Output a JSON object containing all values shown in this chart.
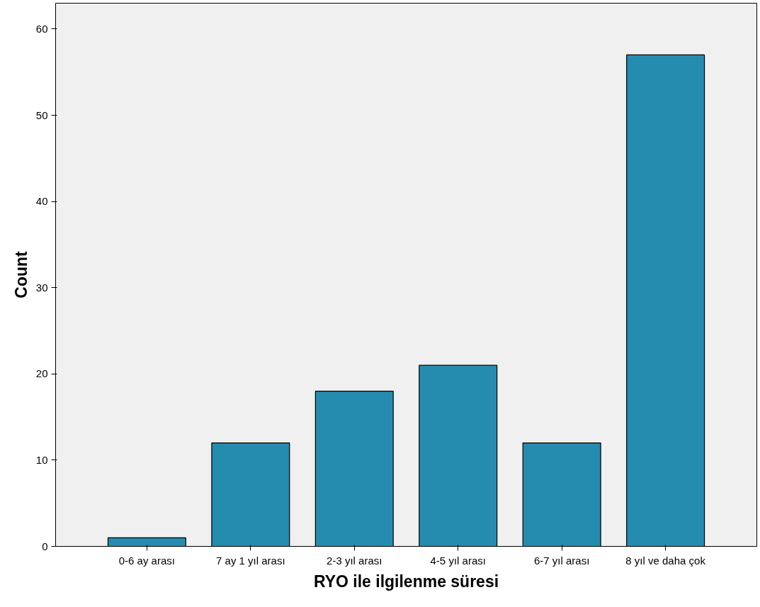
{
  "chart_data": {
    "type": "bar",
    "xlabel": "RYO ile ilgilenme süresi",
    "ylabel": "Count",
    "categories": [
      "0-6 ay arası",
      "7 ay 1 yıl arası",
      "2-3 yıl arası",
      "4-5 yıl arası",
      "6-7 yıl arası",
      "8 yıl ve daha çok"
    ],
    "values": [
      1,
      12,
      18,
      21,
      12,
      57
    ],
    "color": "#268caf",
    "ylim": [
      0,
      63
    ],
    "yticks": [
      0,
      10,
      20,
      30,
      40,
      50,
      60
    ],
    "grid": false
  }
}
